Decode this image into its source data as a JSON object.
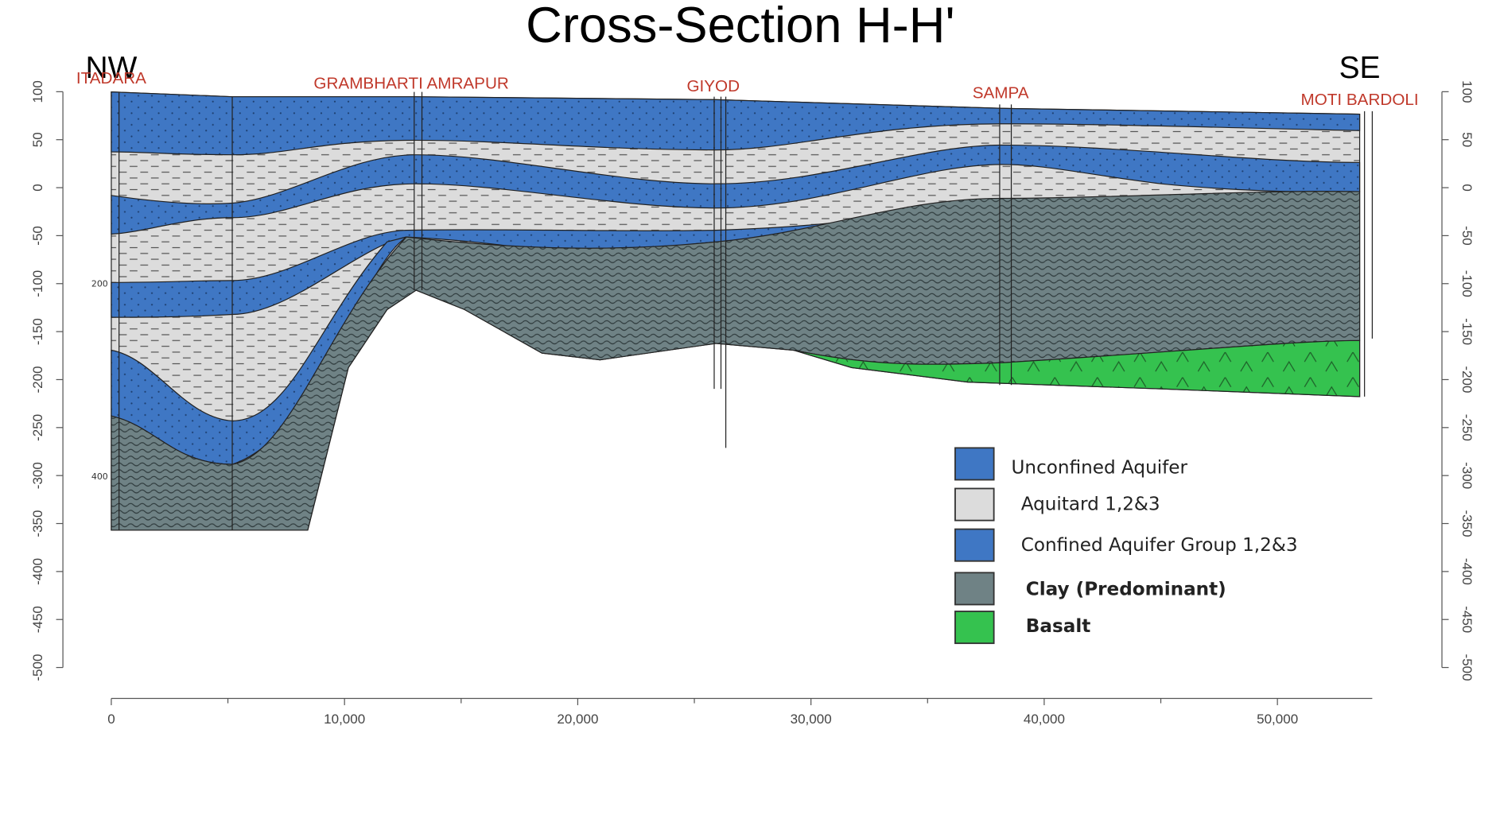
{
  "title": "Cross-Section H-H'",
  "directions": {
    "left": "NW",
    "right": "SE"
  },
  "wells": [
    {
      "name": "ITADARA"
    },
    {
      "name": "GRAMBHARTI AMRAPUR"
    },
    {
      "name": "GIYOD"
    },
    {
      "name": "SAMPA"
    },
    {
      "name": "MOTI BARDOLI"
    }
  ],
  "depth_labels": [
    "200",
    "400"
  ],
  "axes": {
    "x_ticks": [
      0,
      {
        "value": 10000,
        "label": "10,000"
      },
      {
        "value": 20000,
        "label": "20,000"
      },
      {
        "value": 30000,
        "label": "30,000"
      },
      {
        "value": 40000,
        "label": "40,000"
      },
      {
        "value": 50000,
        "label": "50,000"
      }
    ],
    "y_ticks": [
      100,
      50,
      0,
      -50,
      -100,
      -150,
      -200,
      -250,
      -300,
      -350,
      -400,
      -450,
      -500
    ]
  },
  "legend": [
    {
      "label": "Unconfined Aquifer"
    },
    {
      "label": "Aquitard 1,2&3"
    },
    {
      "label": "Confined Aquifer Group 1,2&3"
    },
    {
      "label": "Clay (Predominant)"
    },
    {
      "label": "Basalt"
    }
  ]
}
